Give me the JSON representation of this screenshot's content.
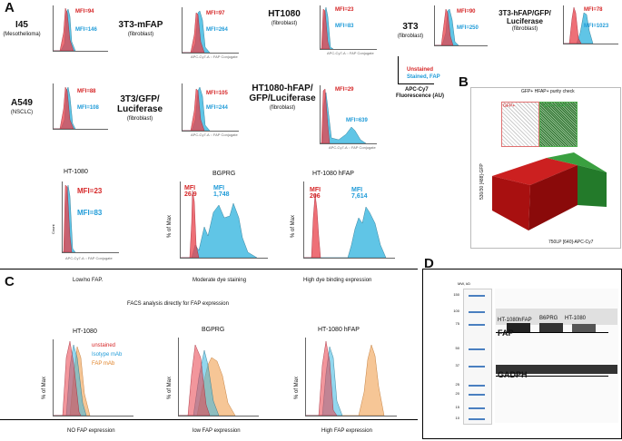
{
  "panel_labels": {
    "a": "A",
    "b": "B",
    "c": "C",
    "d": "D"
  },
  "panel_a": {
    "cells": [
      {
        "name": "I45",
        "sub": "(Mesothelioma)",
        "mfi_red": "MFI=94",
        "mfi_blue": "MFI=146"
      },
      {
        "name": "3T3-mFAP",
        "sub": "(fibroblast)",
        "mfi_red": "MFI=97",
        "mfi_blue": "MFI=264"
      },
      {
        "name": "HT1080",
        "sub": "(fibroblast)",
        "mfi_red": "MFI=23",
        "mfi_blue": "MFI=83"
      },
      {
        "name": "3T3",
        "sub": "(fibroblast)",
        "mfi_red": "MFI=90",
        "mfi_blue": "MFI=250"
      },
      {
        "name": "3T3-hFAP/GFP/ Luciferase",
        "sub": "(fibroblast)",
        "mfi_red": "MFI=78",
        "mfi_blue": "MFI=1023"
      },
      {
        "name": "A549",
        "sub": "(NSCLC)",
        "mfi_red": "MFI=88",
        "mfi_blue": "MFI=108"
      },
      {
        "name": "3T3/GFP/ Luciferase",
        "sub": "(fibroblast)",
        "mfi_red": "MFI=105",
        "mfi_blue": "MFI=244"
      },
      {
        "name": "HT1080-hFAP/ GFP/Luciferase",
        "sub": "(fibroblast)",
        "mfi_red": "MFI=29",
        "mfi_blue": "MFI=639"
      }
    ],
    "legend": {
      "red": "Unstained",
      "blue": "Stained, FAP",
      "axis": "APC-Cy7",
      "axis2": "Fluorescence (AU)"
    },
    "x_axis_small": "APC-Cy7-A :: FAP Conjugate",
    "y_axis_small": "Count",
    "bottom": [
      {
        "title": "HT-1080",
        "mfi_red": "MFI=23",
        "mfi_blue": "MFI=83",
        "caption": "Low/no FAP."
      },
      {
        "title": "BGPRG",
        "mfi_red": "MFI 26.9",
        "mfi_blue": "MFI 1,748",
        "caption": "Moderate dye staining"
      },
      {
        "title": "HT-1080 hFAP",
        "mfi_red": "MFI 206",
        "mfi_blue": "MFI 7,614",
        "caption": "High dye binding expression"
      }
    ],
    "y_pct": "% of Max"
  },
  "panel_b": {
    "title": "GFP+ HFAP+ purity check",
    "gate_left": "GFP+",
    "gate_right": "GFP+ hFAP+",
    "ylabel": "530/30 [488]-GFP",
    "xlabel": "750LP [640]-APC-Cy7"
  },
  "panel_c": {
    "title": "FACS analysis directly for FAP expression",
    "plots": [
      {
        "title": "HT-1080",
        "caption": "NO FAP expression"
      },
      {
        "title": "BGPRG",
        "caption": "low FAP expression"
      },
      {
        "title": "HT-1080 hFAP",
        "caption": "High FAP expression"
      }
    ],
    "legend": {
      "unstained": "unstained",
      "isotype": "Isotype mAb",
      "fap": "FAP mAb"
    },
    "y_pct": "% of Max"
  },
  "panel_d": {
    "mw_label": "MW, kD",
    "markers": [
      "150",
      "100",
      "75",
      "50",
      "37",
      "25",
      "20",
      "15",
      "10"
    ],
    "lanes": [
      "HT-1080hFAP",
      "B6PRG",
      "HT-1080"
    ],
    "fap": "FAP",
    "gadph": "GADPH"
  },
  "colors": {
    "red": "#e8404a",
    "blue": "#38b7e0",
    "orange": "#f0a050",
    "green": "#2e9e3a"
  }
}
